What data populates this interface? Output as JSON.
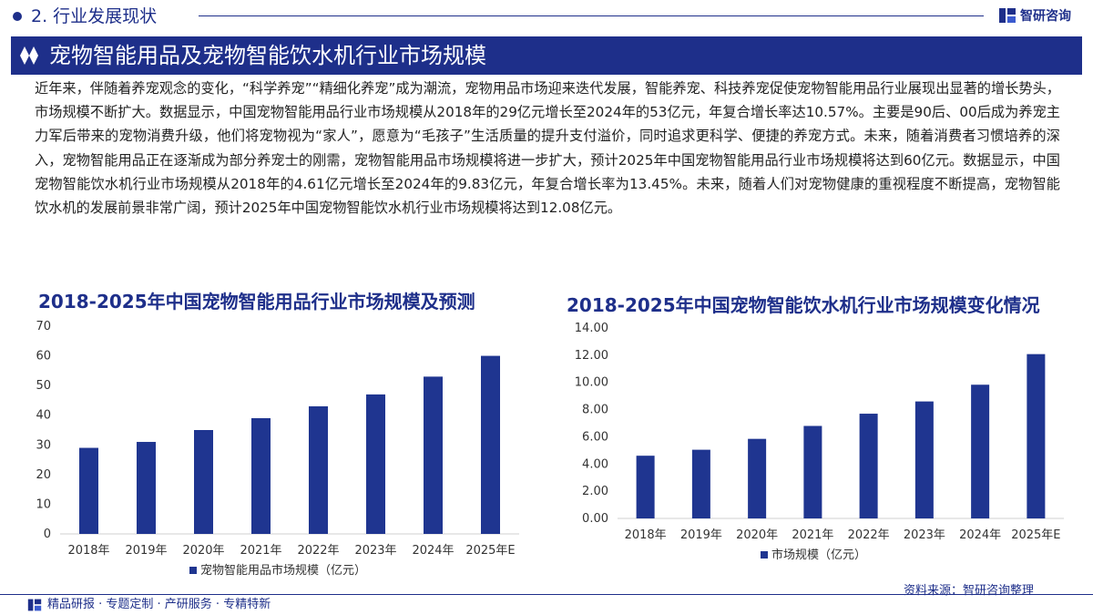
{
  "header": {
    "section": "2. 行业发展现状",
    "logo_text": "智研咨询"
  },
  "banner": {
    "title": "宠物智能用品及宠物智能饮水机行业市场规模"
  },
  "intro": "近年来，伴随着养宠观念的变化，“科学养宠”“精细化养宠”成为潮流，宠物用品市场迎来迭代发展，智能养宠、科技养宠促使宠物智能用品行业展现出显著的增长势头，市场规模不断扩大。数据显示，中国宠物智能用品行业市场规模从2018年的29亿元增长至2024年的53亿元，年复合增长率达10.57%。主要是90后、00后成为养宠主力军后带来的宠物消费升级，他们将宠物视为“家人”，愿意为“毛孩子”生活质量的提升支付溢价，同时追求更科学、便捷的养宠方式。未来，随着消费者习惯培养的深入，宠物智能用品正在逐渐成为部分养宠士的刚需，宠物智能用品市场规模将进一步扩大，预计2025年中国宠物智能用品行业市场规模将达到60亿元。数据显示，中国宠物智能饮水机行业市场规模从2018年的4.61亿元增长至2024年的9.83亿元，年复合增长率为13.45%。未来，随着人们对宠物健康的重视程度不断提高，宠物智能饮水机的发展前景非常广阔，预计2025年中国宠物智能饮水机行业市场规模将达到12.08亿元。",
  "source": "资料来源：智研咨询整理",
  "footer": {
    "services": "精品研报 · 专题定制 · 产研服务 · 专精特新"
  },
  "colors": {
    "primary": "#1e2f8a",
    "bar": "#1f3590",
    "axis": "#d0d0d0"
  },
  "chart_data": [
    {
      "type": "bar",
      "title": "2018-2025年中国宠物智能用品行业市场规模及预测",
      "categories": [
        "2018年",
        "2019年",
        "2020年",
        "2021年",
        "2022年",
        "2023年",
        "2024年",
        "2025年E"
      ],
      "series": [
        {
          "name": "宠物智能用品市场规模（亿元）",
          "values": [
            29,
            31,
            35,
            39,
            43,
            47,
            53,
            60
          ]
        }
      ],
      "ylim": [
        0,
        70
      ],
      "yticks": [
        "0",
        "10",
        "20",
        "30",
        "40",
        "50",
        "60",
        "70"
      ],
      "legend": "bottom",
      "grid": false
    },
    {
      "type": "bar",
      "title": "2018-2025年中国宠物智能饮水机行业市场规模变化情况",
      "categories": [
        "2018年",
        "2019年",
        "2020年",
        "2021年",
        "2022年",
        "2023年",
        "2024年",
        "2025年E"
      ],
      "series": [
        {
          "name": "市场规模（亿元）",
          "values": [
            4.61,
            5.05,
            5.85,
            6.8,
            7.7,
            8.6,
            9.83,
            12.08
          ]
        }
      ],
      "ylim": [
        0,
        14
      ],
      "yticks": [
        "0.00",
        "2.00",
        "4.00",
        "6.00",
        "8.00",
        "10.00",
        "12.00",
        "14.00"
      ],
      "legend": "bottom",
      "grid": false
    }
  ]
}
